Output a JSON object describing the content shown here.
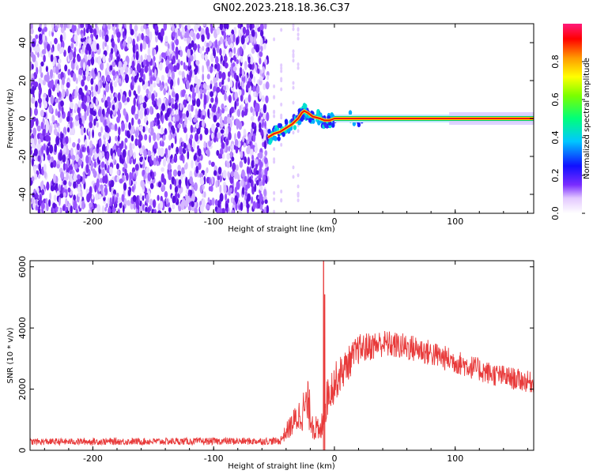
{
  "title": "GN02.2023.218.18.36.C37",
  "chart_data": [
    {
      "type": "heatmap",
      "xlabel": "Height of straight line (km)",
      "ylabel": "Frequency (Hz)",
      "xlim": [
        -252,
        165
      ],
      "ylim": [
        -50,
        50
      ],
      "xticks": [
        -200,
        -100,
        0,
        100
      ],
      "yticks": [
        -40,
        -20,
        0,
        20,
        40
      ],
      "noise_region": {
        "x": [
          -252,
          -55
        ],
        "y": [
          -50,
          50
        ],
        "level": 0.1
      },
      "sparse_columns_x": [
        -50,
        -44,
        -34,
        -30
      ],
      "signal_track": [
        {
          "x": -55,
          "y": -10
        },
        {
          "x": -50,
          "y": -8
        },
        {
          "x": -45,
          "y": -7
        },
        {
          "x": -40,
          "y": -5
        },
        {
          "x": -35,
          "y": -3
        },
        {
          "x": -30,
          "y": 0
        },
        {
          "x": -27,
          "y": 3
        },
        {
          "x": -25,
          "y": 4
        },
        {
          "x": -22,
          "y": 3
        },
        {
          "x": -18,
          "y": 1
        },
        {
          "x": -12,
          "y": 0
        },
        {
          "x": -8,
          "y": -1
        },
        {
          "x": -4,
          "y": -1
        },
        {
          "x": 0,
          "y": 0
        },
        {
          "x": 50,
          "y": 0
        },
        {
          "x": 100,
          "y": 0
        },
        {
          "x": 165,
          "y": 0
        }
      ],
      "colorbar": {
        "label": "Normalized spectral amplitude",
        "range": [
          0,
          1
        ],
        "ticks": [
          "0.0",
          "0.2",
          "0.4",
          "0.6",
          "0.8"
        ]
      }
    },
    {
      "type": "line",
      "xlabel": "Height of straight line (km)",
      "ylabel": "SNR (10 * v/v)",
      "xlim": [
        -252,
        165
      ],
      "ylim": [
        0,
        6200
      ],
      "xticks": [
        -200,
        -100,
        0,
        100
      ],
      "yticks": [
        0,
        2000,
        4000,
        6000
      ],
      "series": [
        {
          "color": "#e83a3a",
          "envelope": [
            {
              "x": -252,
              "base": 280,
              "spread": 110
            },
            {
              "x": -45,
              "base": 300,
              "spread": 120
            },
            {
              "x": -40,
              "base": 600,
              "spread": 280
            },
            {
              "x": -30,
              "base": 1100,
              "spread": 550
            },
            {
              "x": -22,
              "base": 1500,
              "spread": 800
            },
            {
              "x": -17,
              "base": 800,
              "spread": 500
            },
            {
              "x": -12,
              "base": 500,
              "spread": 400
            },
            {
              "x": -5,
              "base": 1900,
              "spread": 700
            },
            {
              "x": 5,
              "base": 2500,
              "spread": 600
            },
            {
              "x": 20,
              "base": 3300,
              "spread": 500
            },
            {
              "x": 40,
              "base": 3500,
              "spread": 450
            },
            {
              "x": 70,
              "base": 3300,
              "spread": 450
            },
            {
              "x": 100,
              "base": 2900,
              "spread": 400
            },
            {
              "x": 130,
              "base": 2500,
              "spread": 380
            },
            {
              "x": 165,
              "base": 2200,
              "spread": 350
            }
          ],
          "peaks": [
            {
              "x": -9,
              "y": 6200
            },
            {
              "x": -8,
              "y": 5100
            }
          ]
        }
      ]
    }
  ]
}
